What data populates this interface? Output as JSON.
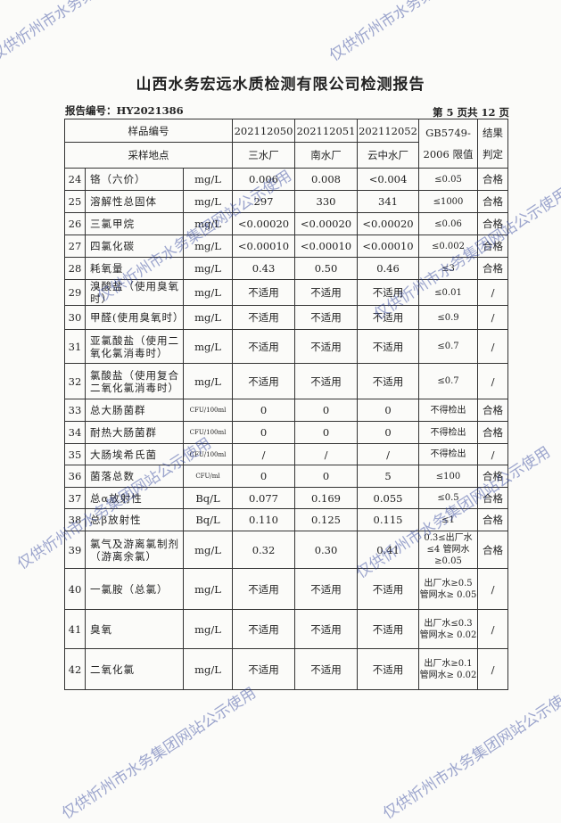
{
  "title": "山西水务宏远水质检测有限公司检测报告",
  "report_no": "报告编号：HY2021386",
  "page": "第 5 页共 12 页",
  "header": {
    "sample_no_label": "样品编号",
    "site_label": "采样地点",
    "samples": [
      "202112050",
      "202112051",
      "202112052"
    ],
    "sites": [
      "三水厂",
      "南水厂",
      "云中水厂"
    ],
    "limit_label_1": "GB5749-",
    "limit_label_2": "2006 限值",
    "result_label_1": "结果",
    "result_label_2": "判定"
  },
  "rows": [
    {
      "no": "24",
      "item": "铬（六价）",
      "unit": "mg/L",
      "v": [
        "0.006",
        "0.008",
        "<0.004"
      ],
      "limit": "≤0.05",
      "result": "合格"
    },
    {
      "no": "25",
      "item": "溶解性总固体",
      "unit": "mg/L",
      "v": [
        "297",
        "330",
        "341"
      ],
      "limit": "≤1000",
      "result": "合格"
    },
    {
      "no": "26",
      "item": "三氯甲烷",
      "unit": "mg/L",
      "v": [
        "<0.00020",
        "<0.00020",
        "<0.00020"
      ],
      "limit": "≤0.06",
      "result": "合格"
    },
    {
      "no": "27",
      "item": "四氯化碳",
      "unit": "mg/L",
      "v": [
        "<0.00010",
        "<0.00010",
        "<0.00010"
      ],
      "limit": "≤0.002",
      "result": "合格"
    },
    {
      "no": "28",
      "item": "耗氧量",
      "unit": "mg/L",
      "v": [
        "0.43",
        "0.50",
        "0.46"
      ],
      "limit": "≤3",
      "result": "合格"
    },
    {
      "no": "29",
      "item": "溴酸盐（使用臭氧时）",
      "unit": "mg/L",
      "v": [
        "不适用",
        "不适用",
        "不适用"
      ],
      "limit": "≤0.01",
      "result": "/"
    },
    {
      "no": "30",
      "item": "甲醛(使用臭氧时）",
      "unit": "mg/L",
      "v": [
        "不适用",
        "不适用",
        "不适用"
      ],
      "limit": "≤0.9",
      "result": "/"
    },
    {
      "no": "31",
      "item": "亚氯酸盐（使用二氧化氯消毒时）",
      "unit": "mg/L",
      "v": [
        "不适用",
        "不适用",
        "不适用"
      ],
      "limit": "≤0.7",
      "result": "/"
    },
    {
      "no": "32",
      "item": "氯酸盐（使用复合二氧化氯消毒时）",
      "unit": "mg/L",
      "v": [
        "不适用",
        "不适用",
        "不适用"
      ],
      "limit": "≤0.7",
      "result": "/"
    },
    {
      "no": "33",
      "item": "总大肠菌群",
      "unit": "CFU/100ml",
      "v": [
        "0",
        "0",
        "0"
      ],
      "limit": "不得检出",
      "result": "合格"
    },
    {
      "no": "34",
      "item": "耐热大肠菌群",
      "unit": "CFU/100ml",
      "v": [
        "0",
        "0",
        "0"
      ],
      "limit": "不得检出",
      "result": "合格"
    },
    {
      "no": "35",
      "item": "大肠埃希氏菌",
      "unit": "CFU/100ml",
      "v": [
        "/",
        "/",
        "/"
      ],
      "limit": "不得检出",
      "result": "/"
    },
    {
      "no": "36",
      "item": "菌落总数",
      "unit": "CFU/ml",
      "v": [
        "0",
        "0",
        "5"
      ],
      "limit": "≤100",
      "result": "合格"
    },
    {
      "no": "37",
      "item": "总α放射性",
      "unit": "Bq/L",
      "v": [
        "0.077",
        "0.169",
        "0.055"
      ],
      "limit": "≤0.5",
      "result": "合格"
    },
    {
      "no": "38",
      "item": "总β放射性",
      "unit": "Bq/L",
      "v": [
        "0.110",
        "0.125",
        "0.115"
      ],
      "limit": "≤1",
      "result": "合格"
    },
    {
      "no": "39",
      "item": "氯气及游离氯制剂（游离余氯）",
      "unit": "mg/L",
      "v": [
        "0.32",
        "0.30",
        "0.41"
      ],
      "limit": "0.3≤出厂水≤4 管网水≥0.05",
      "result": "合格"
    },
    {
      "no": "40",
      "item": "一氯胺（总氯）",
      "unit": "mg/L",
      "v": [
        "不适用",
        "不适用",
        "不适用"
      ],
      "limit": "出厂水≥0.5 管网水≥ 0.05",
      "result": "/"
    },
    {
      "no": "41",
      "item": "臭氧",
      "unit": "mg/L",
      "v": [
        "不适用",
        "不适用",
        "不适用"
      ],
      "limit": "出厂水≤0.3 管网水≥ 0.02",
      "result": "/"
    },
    {
      "no": "42",
      "item": "二氧化氯",
      "unit": "mg/L",
      "v": [
        "不适用",
        "不适用",
        "不适用"
      ],
      "limit": "出厂水≥0.1 管网水≥ 0.02",
      "result": "/"
    }
  ],
  "watermark": "仅供忻州市水务集团网站公示使用"
}
